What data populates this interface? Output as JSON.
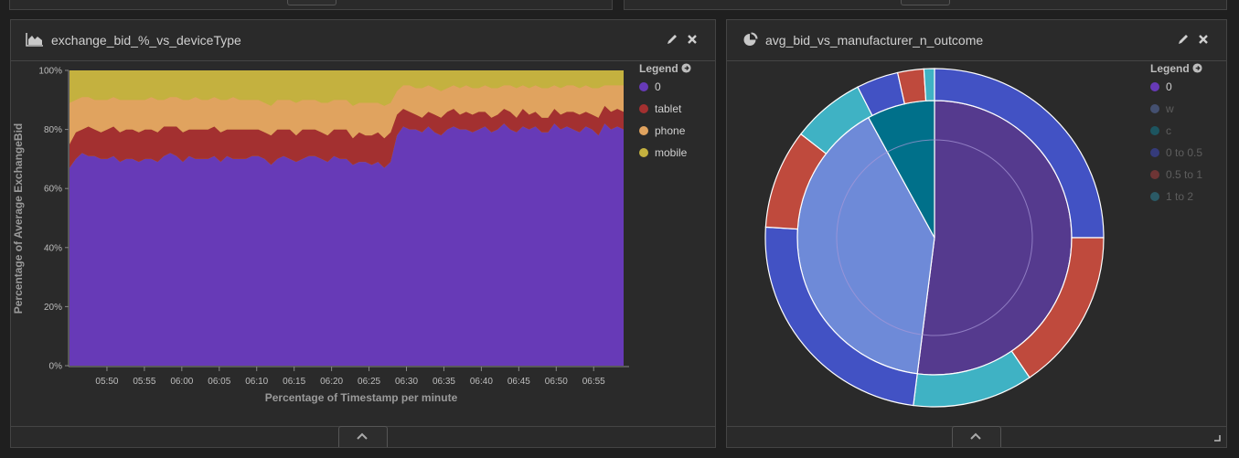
{
  "left_panel": {
    "title": "exchange_bid_%_vs_deviceType",
    "type_icon": "area-chart-icon",
    "edit_icon": "pencil-icon",
    "close_icon": "close-icon",
    "collapse_icon": "chevron-up-icon",
    "legend": {
      "title": "Legend",
      "items": [
        {
          "label": "0",
          "color": "#673ab7"
        },
        {
          "label": "tablet",
          "color": "#a33030"
        },
        {
          "label": "phone",
          "color": "#e0a35f"
        },
        {
          "label": "mobile",
          "color": "#c4b13f"
        }
      ]
    }
  },
  "right_panel": {
    "title": "avg_bid_vs_manufacturer_n_outcome",
    "type_icon": "pie-chart-icon",
    "edit_icon": "pencil-icon",
    "close_icon": "close-icon",
    "collapse_icon": "chevron-up-icon",
    "resize_icon": "resize-handle-icon",
    "legend": {
      "title": "Legend",
      "items": [
        {
          "label": "0",
          "color": "#673ab7",
          "dimmed": false
        },
        {
          "label": "w",
          "color": "#445070",
          "dimmed": true
        },
        {
          "label": "c",
          "color": "#1d5560",
          "dimmed": true
        },
        {
          "label": "0 to 0.5",
          "color": "#353b7a",
          "dimmed": true
        },
        {
          "label": "0.5 to 1",
          "color": "#6e3535",
          "dimmed": true
        },
        {
          "label": "1 to 2",
          "color": "#2b5a66",
          "dimmed": true
        }
      ]
    }
  },
  "chart_data": [
    {
      "type": "area",
      "stacked": "percent",
      "xlabel": "Percentage of Timestamp per minute",
      "ylabel": "Percentage of Average ExchangeBid",
      "yticks": [
        "0%",
        "20%",
        "40%",
        "60%",
        "80%",
        "100%"
      ],
      "ylim": [
        0,
        100
      ],
      "xticks": [
        "05:50",
        "05:55",
        "06:00",
        "06:05",
        "06:10",
        "06:15",
        "06:20",
        "06:25",
        "06:30",
        "06:35",
        "06:40",
        "06:45",
        "06:50",
        "06:55"
      ],
      "x_start": "05:45",
      "x_end": "06:59",
      "colors": [
        "#673ab7",
        "#a33030",
        "#e0a35f",
        "#c4b13f"
      ],
      "series_names": [
        "0",
        "tablet",
        "phone",
        "mobile"
      ],
      "boundaries": [
        {
          "series": "0",
          "upper": [
            67,
            70,
            72,
            71,
            71,
            70,
            70,
            71,
            69,
            70,
            70,
            69,
            70,
            70,
            69,
            71,
            72,
            71,
            69,
            71,
            70,
            70,
            70,
            71,
            69,
            71,
            70,
            70,
            70,
            71,
            71,
            70,
            68,
            70,
            71,
            70,
            69,
            70,
            71,
            71,
            70,
            69,
            71,
            70,
            70,
            68,
            69,
            69,
            68,
            69,
            67,
            69,
            78,
            81,
            80,
            80,
            79,
            81,
            79,
            78,
            80,
            81,
            80,
            80,
            79,
            80,
            81,
            79,
            80,
            82,
            80,
            79,
            81,
            80,
            81,
            79,
            79,
            82,
            80,
            81,
            80,
            79,
            81,
            80,
            78,
            82,
            80,
            81,
            80
          ]
        },
        {
          "series": "tablet",
          "upper": [
            75,
            79,
            80,
            81,
            80,
            79,
            80,
            81,
            79,
            80,
            80,
            79,
            80,
            80,
            79,
            81,
            81,
            81,
            79,
            80,
            80,
            80,
            80,
            81,
            79,
            80,
            80,
            80,
            80,
            80,
            80,
            79,
            78,
            80,
            80,
            80,
            78,
            80,
            80,
            80,
            79,
            78,
            80,
            80,
            80,
            77,
            79,
            78,
            78,
            79,
            77,
            79,
            85,
            87,
            86,
            85,
            84,
            86,
            85,
            84,
            86,
            87,
            85,
            86,
            85,
            86,
            86,
            84,
            85,
            87,
            86,
            84,
            87,
            85,
            86,
            84,
            84,
            87,
            85,
            86,
            86,
            85,
            86,
            85,
            84,
            88,
            86,
            87,
            86
          ]
        },
        {
          "series": "phone",
          "upper": [
            89,
            90,
            91,
            91,
            90,
            90,
            90,
            91,
            90,
            90,
            90,
            90,
            90,
            91,
            90,
            90,
            91,
            91,
            90,
            90,
            91,
            90,
            90,
            91,
            90,
            90,
            91,
            90,
            90,
            90,
            90,
            89,
            88,
            90,
            90,
            90,
            89,
            90,
            90,
            90,
            89,
            89,
            90,
            90,
            90,
            88,
            89,
            89,
            89,
            89,
            88,
            89,
            93,
            95,
            95,
            94,
            94,
            95,
            94,
            93,
            94,
            95,
            94,
            95,
            94,
            94,
            95,
            94,
            94,
            95,
            95,
            94,
            95,
            94,
            95,
            94,
            94,
            95,
            94,
            95,
            95,
            94,
            95,
            94,
            94,
            95,
            95,
            95,
            95
          ]
        },
        {
          "series": "mobile",
          "upper": [
            100,
            100,
            100,
            100,
            100,
            100,
            100,
            100,
            100,
            100,
            100,
            100,
            100,
            100,
            100,
            100,
            100,
            100,
            100,
            100,
            100,
            100,
            100,
            100,
            100,
            100,
            100,
            100,
            100,
            100,
            100,
            100,
            100,
            100,
            100,
            100,
            100,
            100,
            100,
            100,
            100,
            100,
            100,
            100,
            100,
            100,
            100,
            100,
            100,
            100,
            100,
            100,
            100,
            100,
            100,
            100,
            100,
            100,
            100,
            100,
            100,
            100,
            100,
            100,
            100,
            100,
            100,
            100,
            100,
            100,
            100,
            100,
            100,
            100,
            100,
            100,
            100,
            100,
            100,
            100,
            100,
            100,
            100,
            100,
            100,
            100,
            100,
            100,
            100
          ]
        }
      ]
    },
    {
      "type": "pie",
      "donut_rings": [
        {
          "ring": "inner",
          "slices": [
            {
              "value": 52,
              "color": "#553a8e"
            },
            {
              "value": 40,
              "color": "#6e8ad8"
            },
            {
              "value": 8,
              "color": "#00708a"
            }
          ]
        },
        {
          "ring": "outer",
          "slices": [
            {
              "value": 25,
              "color": "#4252c4"
            },
            {
              "value": 15.5,
              "color": "#bf4a3d"
            },
            {
              "value": 11.5,
              "color": "#3fb2c4"
            },
            {
              "value": 24,
              "color": "#4252c4"
            },
            {
              "value": 9.5,
              "color": "#bf4a3d"
            },
            {
              "value": 7,
              "color": "#3fb2c4"
            },
            {
              "value": 4,
              "color": "#4252c4"
            },
            {
              "value": 2.5,
              "color": "#bf4a3d"
            },
            {
              "value": 1,
              "color": "#3fb2c4"
            }
          ]
        }
      ]
    }
  ]
}
